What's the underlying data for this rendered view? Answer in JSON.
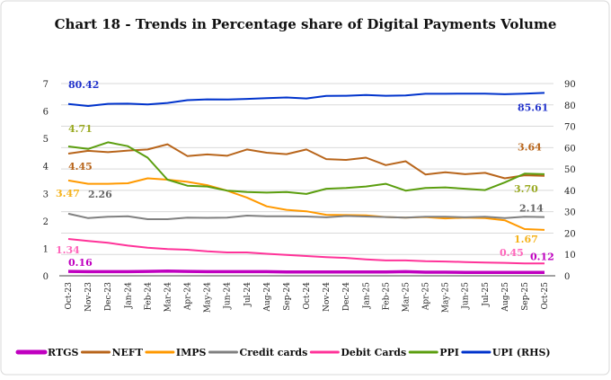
{
  "chart_data": {
    "type": "line",
    "title": "Chart 18 - Trends in Percentage share of Digital Payments Volume",
    "categories": [
      "Oct-23",
      "Nov-23",
      "Dec-23",
      "Jan-24",
      "Feb-24",
      "Mar-24",
      "Apr-24",
      "May-24",
      "Jun-24",
      "Jul-24",
      "Aug-24",
      "Sep-24",
      "Oct-24",
      "Nov-24",
      "Dec-24",
      "Jan-25",
      "Feb-25",
      "Mar-25",
      "Apr-25",
      "May-25",
      "Jun-25",
      "Jul-25",
      "Aug-25",
      "Sep-25",
      "Oct-25"
    ],
    "y_left": {
      "range": [
        0,
        7
      ],
      "ticks": [
        "0",
        "1",
        "2",
        "3",
        "4",
        "5",
        "6",
        "7"
      ]
    },
    "y_right": {
      "range": [
        0,
        90
      ],
      "ticks": [
        "0",
        "10",
        "20",
        "30",
        "40",
        "50",
        "60",
        "70",
        "80",
        "90"
      ]
    },
    "grid": true,
    "legend_placement": "bottom",
    "series": [
      {
        "name": "RTGS",
        "color": "#c000c0",
        "axis": "left",
        "values": [
          0.16,
          0.15,
          0.15,
          0.15,
          0.16,
          0.17,
          0.16,
          0.15,
          0.15,
          0.15,
          0.15,
          0.14,
          0.14,
          0.14,
          0.14,
          0.14,
          0.14,
          0.15,
          0.13,
          0.13,
          0.12,
          0.12,
          0.12,
          0.12,
          0.12
        ]
      },
      {
        "name": "NEFT",
        "color": "#b8651b",
        "axis": "left",
        "values": [
          4.45,
          4.55,
          4.5,
          4.56,
          4.6,
          4.79,
          4.36,
          4.42,
          4.37,
          4.6,
          4.48,
          4.43,
          4.6,
          4.25,
          4.22,
          4.3,
          4.03,
          4.17,
          3.69,
          3.77,
          3.7,
          3.75,
          3.55,
          3.66,
          3.64
        ]
      },
      {
        "name": "IMPS",
        "color": "#ff9900",
        "axis": "left",
        "values": [
          3.47,
          3.35,
          3.35,
          3.37,
          3.55,
          3.5,
          3.42,
          3.3,
          3.1,
          2.85,
          2.53,
          2.4,
          2.35,
          2.22,
          2.21,
          2.2,
          2.14,
          2.12,
          2.14,
          2.09,
          2.12,
          2.1,
          2.02,
          1.7,
          1.67
        ]
      },
      {
        "name": "Credit cards",
        "color": "#808080",
        "axis": "left",
        "values": [
          2.26,
          2.1,
          2.15,
          2.17,
          2.06,
          2.06,
          2.12,
          2.11,
          2.12,
          2.19,
          2.17,
          2.17,
          2.16,
          2.13,
          2.18,
          2.16,
          2.14,
          2.12,
          2.15,
          2.15,
          2.13,
          2.15,
          2.1,
          2.15,
          2.14
        ]
      },
      {
        "name": "Debit Cards",
        "color": "#ff3399",
        "axis": "left",
        "values": [
          1.34,
          1.27,
          1.2,
          1.1,
          1.02,
          0.97,
          0.95,
          0.89,
          0.85,
          0.85,
          0.8,
          0.76,
          0.72,
          0.68,
          0.65,
          0.6,
          0.56,
          0.56,
          0.53,
          0.52,
          0.5,
          0.48,
          0.47,
          0.45,
          0.45
        ]
      },
      {
        "name": "PPI",
        "color": "#5b9e0f",
        "axis": "left",
        "values": [
          4.71,
          4.62,
          4.86,
          4.72,
          4.3,
          3.5,
          3.28,
          3.25,
          3.1,
          3.05,
          3.03,
          3.05,
          2.98,
          3.17,
          3.2,
          3.25,
          3.35,
          3.1,
          3.2,
          3.22,
          3.17,
          3.12,
          3.4,
          3.72,
          3.7
        ]
      },
      {
        "name": "UPI (RHS)",
        "color": "#0033cc",
        "axis": "right",
        "values": [
          80.42,
          79.5,
          80.5,
          80.6,
          80.2,
          80.9,
          82.2,
          82.6,
          82.5,
          82.8,
          83.2,
          83.5,
          83.0,
          84.2,
          84.3,
          84.6,
          84.3,
          84.4,
          85.2,
          85.2,
          85.3,
          85.3,
          85.0,
          85.3,
          85.61
        ]
      }
    ],
    "data_labels": [
      {
        "series": "UPI (RHS)",
        "category": "Oct-23",
        "text": "80.42",
        "color": "#2233cc"
      },
      {
        "series": "UPI (RHS)",
        "category": "Oct-25",
        "text": "85.61",
        "color": "#2233cc"
      },
      {
        "series": "PPI",
        "category": "Oct-23",
        "text": "4.71",
        "color": "#9aaa22"
      },
      {
        "series": "PPI",
        "category": "Oct-25",
        "text": "3.70",
        "color": "#9aaa22"
      },
      {
        "series": "NEFT",
        "category": "Oct-23",
        "text": "4.45",
        "color": "#b8651b"
      },
      {
        "series": "NEFT",
        "category": "Oct-25",
        "text": "3.64",
        "color": "#b8651b"
      },
      {
        "series": "IMPS",
        "category": "Oct-23",
        "text": "3.47",
        "color": "#f5b21a"
      },
      {
        "series": "IMPS",
        "category": "Oct-25",
        "text": "1.67",
        "color": "#f5b21a"
      },
      {
        "series": "Credit cards",
        "category": "Oct-23",
        "text": "2.26",
        "color": "#666666"
      },
      {
        "series": "Credit cards",
        "category": "Oct-25",
        "text": "2.14",
        "color": "#666666"
      },
      {
        "series": "Debit Cards",
        "category": "Oct-23",
        "text": "1.34",
        "color": "#ff66bb"
      },
      {
        "series": "Debit Cards",
        "category": "Oct-25",
        "text": "0.45",
        "color": "#ff66bb"
      },
      {
        "series": "RTGS",
        "category": "Oct-23",
        "text": "0.16",
        "color": "#c000c0"
      },
      {
        "series": "RTGS",
        "category": "Oct-25",
        "text": "0.12",
        "color": "#c000c0"
      }
    ]
  }
}
